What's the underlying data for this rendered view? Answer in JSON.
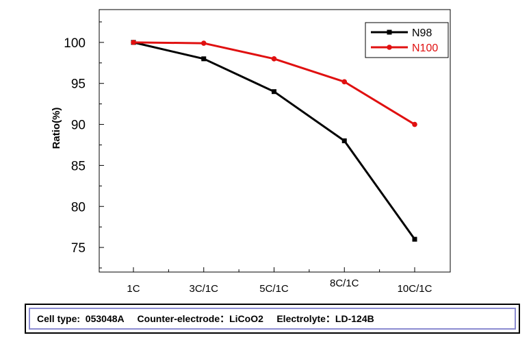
{
  "chart_data": {
    "type": "line",
    "title": "",
    "xlabel": "",
    "ylabel": "Ratio(%)",
    "categories": [
      "1C",
      "3C/1C",
      "5C/1C",
      "8C/1C",
      "10C/1C"
    ],
    "ylim": [
      72,
      104
    ],
    "yticks": [
      75,
      80,
      85,
      90,
      95,
      100
    ],
    "grid": false,
    "legend_position": "top-right",
    "series": [
      {
        "name": "N98",
        "color": "#000000",
        "marker": "square",
        "values": [
          100,
          98,
          94,
          88,
          76
        ]
      },
      {
        "name": "N100",
        "color": "#e01010",
        "marker": "circle",
        "values": [
          100,
          99.9,
          98,
          95.2,
          90
        ]
      }
    ]
  },
  "info": {
    "text": "Cell type:  053048A     Counter-electrode：LiCoO2     Electrolyte：LD-124B"
  }
}
